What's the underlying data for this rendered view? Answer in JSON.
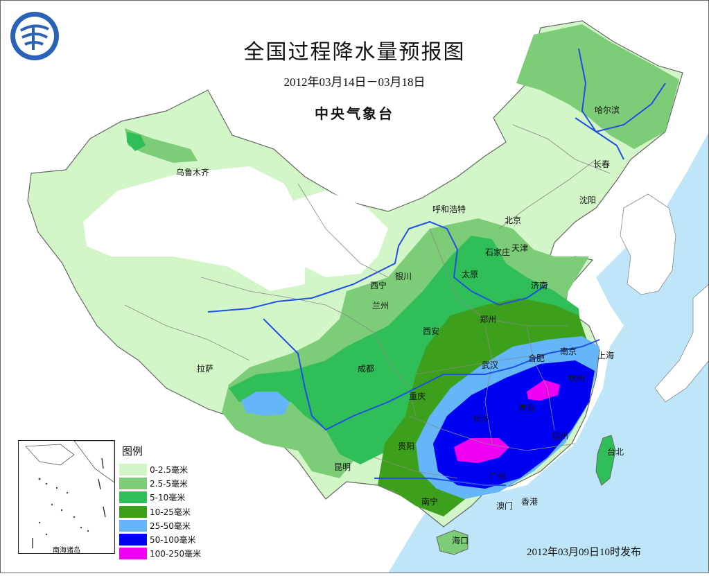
{
  "title": "全国过程降水量预报图",
  "date_range": "2012年03月14日－03月18日",
  "issuer": "中央气象台",
  "issue_time": "2012年03月09日10时发布",
  "legend": {
    "title": "图例",
    "items": [
      {
        "label": "0-2.5毫米",
        "color": "#d2f6c8"
      },
      {
        "label": "2.5-5毫米",
        "color": "#7ccc78"
      },
      {
        "label": "5-10毫米",
        "color": "#30be58"
      },
      {
        "label": "10-25毫米",
        "color": "#3ca01c"
      },
      {
        "label": "25-50毫米",
        "color": "#64b6f8"
      },
      {
        "label": "50-100毫米",
        "color": "#0000f2"
      },
      {
        "label": "100-250毫米",
        "color": "#f000f2"
      }
    ]
  },
  "cities": [
    {
      "name": "哈尔滨"
    },
    {
      "name": "长春"
    },
    {
      "name": "沈阳"
    },
    {
      "name": "乌鲁木齐"
    },
    {
      "name": "呼和浩特"
    },
    {
      "name": "北京"
    },
    {
      "name": "天津"
    },
    {
      "name": "石家庄"
    },
    {
      "name": "太原"
    },
    {
      "name": "济南"
    },
    {
      "name": "西宁"
    },
    {
      "name": "银川"
    },
    {
      "name": "兰州"
    },
    {
      "name": "郑州"
    },
    {
      "name": "西安"
    },
    {
      "name": "南京"
    },
    {
      "name": "上海"
    },
    {
      "name": "合肥"
    },
    {
      "name": "武汉"
    },
    {
      "name": "杭州"
    },
    {
      "name": "成都"
    },
    {
      "name": "拉萨"
    },
    {
      "name": "重庆"
    },
    {
      "name": "南昌"
    },
    {
      "name": "长沙"
    },
    {
      "name": "福州"
    },
    {
      "name": "台北"
    },
    {
      "name": "贵阳"
    },
    {
      "name": "昆明"
    },
    {
      "name": "广州"
    },
    {
      "name": "南宁"
    },
    {
      "name": "澳门"
    },
    {
      "name": "香港"
    },
    {
      "name": "海口"
    }
  ],
  "inset_label": "南海诸岛",
  "colors": {
    "sea": "#bfe6f8",
    "river": "#1e50e6",
    "border": "#888888"
  },
  "icons": {
    "logo": "cma-logo"
  }
}
